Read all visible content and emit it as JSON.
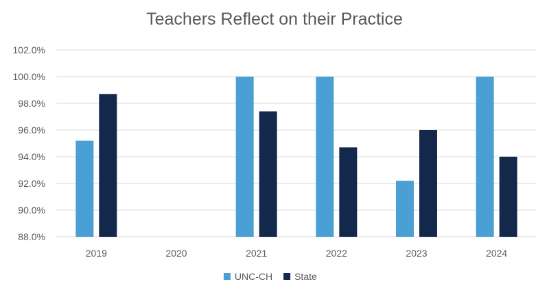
{
  "chart_data": {
    "type": "bar",
    "title": "Teachers Reflect on their Practice",
    "xlabel": "",
    "ylabel": "",
    "categories": [
      "2019",
      "2020",
      "2021",
      "2022",
      "2023",
      "2024"
    ],
    "series": [
      {
        "name": "UNC-CH",
        "color": "#4a9fd5",
        "values": [
          95.2,
          null,
          100.0,
          100.0,
          92.2,
          100.0
        ]
      },
      {
        "name": "State",
        "color": "#14284b",
        "values": [
          98.7,
          null,
          97.4,
          94.7,
          96.0,
          94.0
        ]
      }
    ],
    "ylim": [
      88.0,
      102.0
    ],
    "yticks": [
      "88.0%",
      "90.0%",
      "92.0%",
      "94.0%",
      "96.0%",
      "98.0%",
      "100.0%",
      "102.0%"
    ],
    "grid": true,
    "legend": "bottom"
  }
}
